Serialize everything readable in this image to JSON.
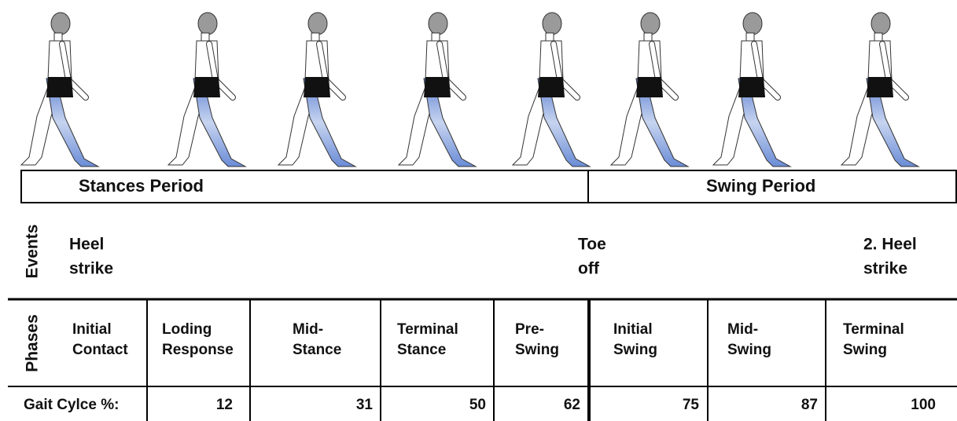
{
  "periods": [
    "Stances Period",
    "Swing Period"
  ],
  "events": {
    "label": "Events",
    "items": [
      [
        "Heel",
        "strike"
      ],
      [
        "Toe",
        "off"
      ],
      [
        "2. Heel",
        "strike"
      ]
    ]
  },
  "phases": {
    "label": "Phases",
    "items": [
      [
        "Initial",
        "Contact"
      ],
      [
        "Loding",
        "Response"
      ],
      [
        "Mid-",
        "Stance"
      ],
      [
        "Terminal",
        "Stance"
      ],
      [
        "Pre-",
        "Swing"
      ],
      [
        "Initial",
        "Swing"
      ],
      [
        "Mid-",
        "Swing"
      ],
      [
        "Terminal",
        "Swing"
      ]
    ]
  },
  "gait_cycle": {
    "label": "Gait Cylce %:",
    "values": [
      12,
      31,
      50,
      62,
      75,
      87,
      100
    ]
  }
}
